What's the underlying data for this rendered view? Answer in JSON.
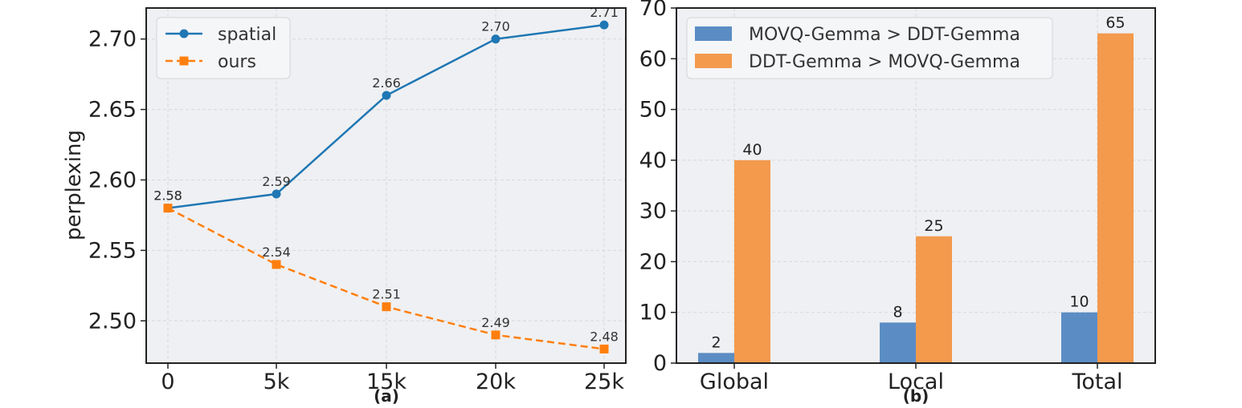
{
  "colors": {
    "blue": "#1f77b4",
    "orange": "#ff7f0e",
    "bar_blue": "#5b8dc4",
    "bar_orange": "#f39a4d",
    "panel_bg": "#eff0f3",
    "grid": "#d6d8dc"
  },
  "chart_data": [
    {
      "type": "line",
      "panel_label": "(a)",
      "ylabel": "perplexing",
      "xlabel": "",
      "categories": [
        "0",
        "5k",
        "15k",
        "20k",
        "25k"
      ],
      "ylim": [
        2.47,
        2.722
      ],
      "yticks": [
        "2.50",
        "2.55",
        "2.60",
        "2.65",
        "2.70"
      ],
      "ytick_values": [
        2.5,
        2.55,
        2.6,
        2.65,
        2.7
      ],
      "grid": true,
      "legend_position": "top-left",
      "series": [
        {
          "name": "spatial",
          "values": [
            2.58,
            2.59,
            2.66,
            2.7,
            2.71
          ],
          "labels": [
            "2.58",
            "2.59",
            "2.66",
            "2.70",
            "2.71"
          ],
          "color": "#1f77b4",
          "marker": "circle",
          "linestyle": "solid"
        },
        {
          "name": "ours",
          "values": [
            2.58,
            2.54,
            2.51,
            2.49,
            2.48
          ],
          "labels": [
            "2.58",
            "2.54",
            "2.51",
            "2.49",
            "2.48"
          ],
          "color": "#ff7f0e",
          "marker": "square",
          "linestyle": "dashed"
        }
      ]
    },
    {
      "type": "bar",
      "panel_label": "(b)",
      "xlabel": "",
      "ylabel": "",
      "categories": [
        "Global",
        "Local",
        "Total"
      ],
      "ylim": [
        0,
        70
      ],
      "yticks": [
        "0",
        "10",
        "20",
        "30",
        "40",
        "50",
        "60",
        "70"
      ],
      "ytick_values": [
        0,
        10,
        20,
        30,
        40,
        50,
        60,
        70
      ],
      "grid": true,
      "legend_position": "top-left",
      "series": [
        {
          "name": "MOVQ-Gemma > DDT-Gemma",
          "values": [
            2,
            8,
            10
          ],
          "color": "#5b8dc4"
        },
        {
          "name": "DDT-Gemma > MOVQ-Gemma",
          "values": [
            40,
            25,
            65
          ],
          "color": "#f39a4d"
        }
      ]
    }
  ]
}
